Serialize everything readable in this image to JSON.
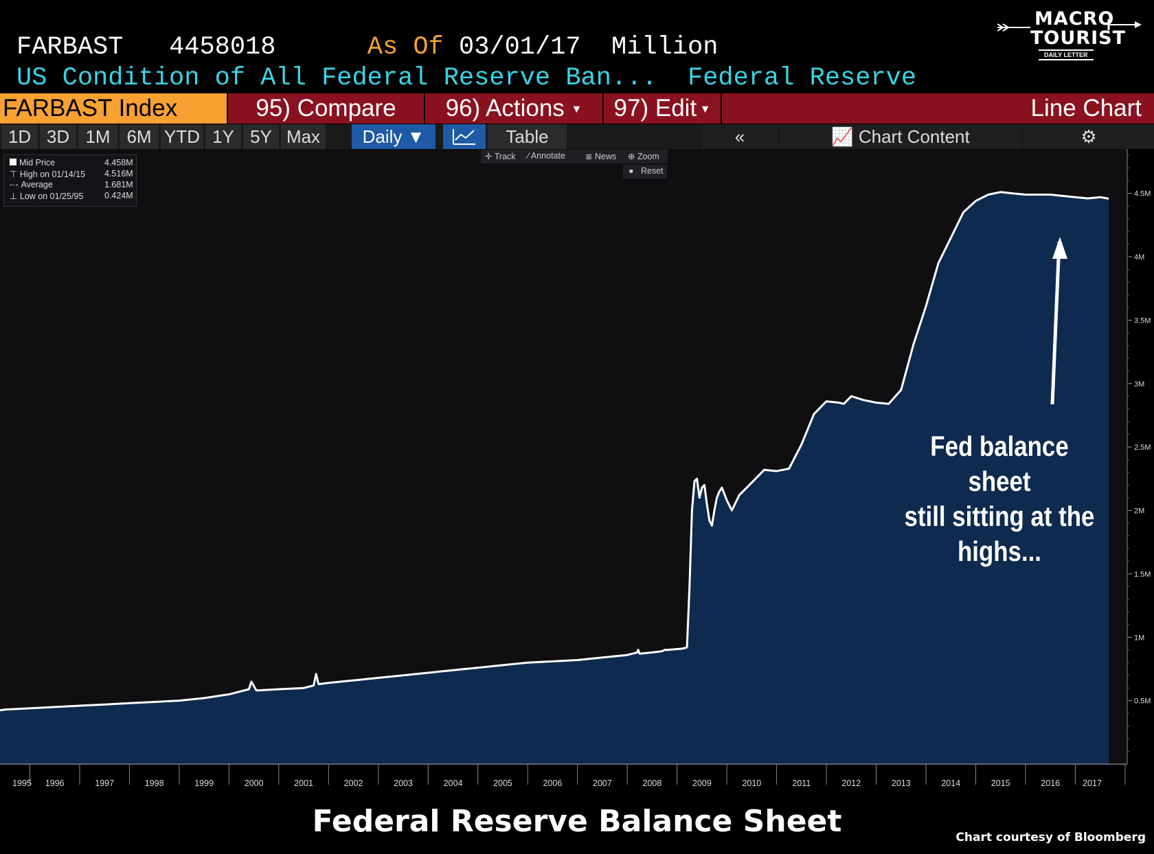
{
  "header": {
    "ticker": "FARBAST",
    "last_value": "4458018",
    "as_of_label": "As Of",
    "as_of_date": "03/01/17",
    "units": "Million",
    "description": "US Condition of All Federal Reserve Ban...",
    "source": "Federal Reserve"
  },
  "logo": {
    "line1": "MACRO",
    "line2": "TOURIST",
    "line3": "DAILY LETTER"
  },
  "toolbar": {
    "index_label": "FARBAST Index",
    "compare": "95) Compare",
    "actions": "96) Actions",
    "edit": "97) Edit",
    "chart_type": "Line Chart"
  },
  "periods": [
    "1D",
    "3D",
    "1M",
    "6M",
    "YTD",
    "1Y",
    "5Y",
    "Max"
  ],
  "frequency": "Daily ▼",
  "view_tabs": {
    "table": "Table",
    "collapse": "«",
    "chart_content": "Chart Content",
    "settings_icon": "gear-icon"
  },
  "chart_tools": {
    "track": "Track",
    "annotate": "Annotate",
    "news": "News",
    "zoom": "Zoom",
    "reset": "Reset"
  },
  "legend": {
    "mid_label": "Mid Price",
    "mid_value": "4.458M",
    "high_label": "High on 01/14/15",
    "high_value": "4.516M",
    "avg_label": "Average",
    "avg_value": "1.681M",
    "low_label": "Low on 01/25/95",
    "low_value": "0.424M"
  },
  "annotation": {
    "line1": "Fed balance sheet",
    "line2": "still sitting at the",
    "line3": "highs..."
  },
  "footer": {
    "title": "Federal Reserve Balance Sheet",
    "credit": "Chart courtesy of Bloomberg"
  },
  "colors": {
    "line": "#ffffff",
    "area": "#0e2a4f",
    "plot_bg": "#0f0f12",
    "accent_orange": "#f7a132",
    "accent_cyan": "#3ad4e6",
    "toolbar_red": "#8a1220",
    "active_blue": "#1f5aa6"
  },
  "chart_data": {
    "type": "area",
    "y_ticks": [
      "0.5M",
      "1M",
      "1.5M",
      "2M",
      "2.5M",
      "3M",
      "3.5M",
      "4M",
      "4.5M"
    ],
    "y_tick_values": [
      0.5,
      1,
      1.5,
      2,
      2.5,
      3,
      3.5,
      4,
      4.5
    ],
    "x_ticks": [
      "1995",
      "1996",
      "1997",
      "1998",
      "1999",
      "2000",
      "2001",
      "2002",
      "2003",
      "2004",
      "2005",
      "2006",
      "2007",
      "2008",
      "2009",
      "2010",
      "2011",
      "2012",
      "2013",
      "2014",
      "2015",
      "2016",
      "2017"
    ],
    "x_range": [
      1994.9,
      2017.17
    ],
    "ylim": [
      0,
      4.85
    ],
    "series": [
      {
        "x": [
          1994.9,
          1995.0,
          1995.5,
          1996.0,
          1996.5,
          1997.0,
          1997.5,
          1998.0,
          1998.5,
          1999.0,
          1999.5,
          1999.9,
          1999.95,
          2000.05,
          2000.5,
          2001.0,
          2001.2,
          2001.25,
          2001.3,
          2001.5,
          2002.0,
          2002.5,
          2003.0,
          2003.5,
          2004.0,
          2004.5,
          2005.0,
          2005.5,
          2006.0,
          2006.5,
          2007.0,
          2007.5,
          2007.7,
          2007.72,
          2007.75,
          2008.0,
          2008.2,
          2008.25,
          2008.3,
          2008.6,
          2008.7,
          2008.75,
          2008.8,
          2008.85,
          2008.9,
          2008.95,
          2009.0,
          2009.05,
          2009.1,
          2009.15,
          2009.2,
          2009.25,
          2009.3,
          2009.35,
          2009.4,
          2009.5,
          2009.6,
          2009.75,
          2010.0,
          2010.25,
          2010.5,
          2010.75,
          2011.0,
          2011.25,
          2011.5,
          2011.75,
          2011.85,
          2012.0,
          2012.25,
          2012.5,
          2012.75,
          2013.0,
          2013.25,
          2013.5,
          2013.75,
          2014.0,
          2014.25,
          2014.5,
          2014.75,
          2015.0,
          2015.25,
          2015.5,
          2015.75,
          2016.0,
          2016.25,
          2016.5,
          2016.75,
          2017.0,
          2017.17
        ],
        "values": [
          0.424,
          0.43,
          0.44,
          0.45,
          0.46,
          0.47,
          0.48,
          0.49,
          0.5,
          0.52,
          0.55,
          0.59,
          0.65,
          0.58,
          0.59,
          0.6,
          0.62,
          0.71,
          0.63,
          0.64,
          0.66,
          0.68,
          0.7,
          0.72,
          0.74,
          0.76,
          0.78,
          0.8,
          0.81,
          0.82,
          0.84,
          0.86,
          0.88,
          0.9,
          0.87,
          0.88,
          0.89,
          0.9,
          0.9,
          0.91,
          0.92,
          1.4,
          2.0,
          2.23,
          2.25,
          2.1,
          2.18,
          2.2,
          2.05,
          1.92,
          1.88,
          2.0,
          2.1,
          2.15,
          2.18,
          2.08,
          2.0,
          2.12,
          2.22,
          2.32,
          2.31,
          2.33,
          2.52,
          2.76,
          2.86,
          2.85,
          2.84,
          2.9,
          2.87,
          2.85,
          2.84,
          2.95,
          3.31,
          3.61,
          3.95,
          4.15,
          4.35,
          4.44,
          4.49,
          4.51,
          4.5,
          4.49,
          4.49,
          4.49,
          4.48,
          4.47,
          4.46,
          4.47,
          4.458
        ]
      }
    ]
  }
}
